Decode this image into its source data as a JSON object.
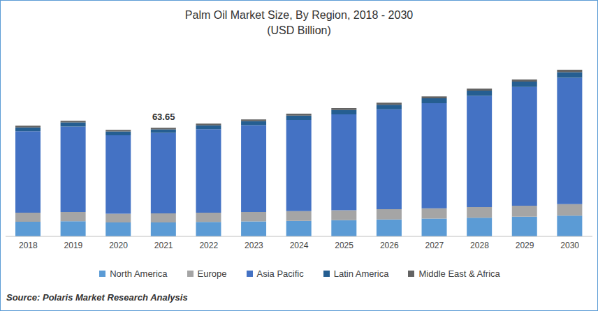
{
  "chart_data": {
    "type": "bar",
    "title": "Palm Oil Market Size, By Region, 2018 - 2030",
    "subtitle": "(USD Billion)",
    "source": "Source: Polaris Market Research Analysis",
    "categories": [
      "2018",
      "2019",
      "2020",
      "2021",
      "2022",
      "2023",
      "2024",
      "2025",
      "2026",
      "2027",
      "2028",
      "2029",
      "2030"
    ],
    "series": [
      {
        "name": "North America",
        "color": "#5b9bd5",
        "values": [
          8.6,
          8.9,
          8.2,
          8.2,
          8.5,
          8.8,
          9.1,
          9.5,
          9.9,
          10.4,
          10.9,
          11.5,
          12.2
        ]
      },
      {
        "name": "Europe",
        "color": "#a5a5a5",
        "values": [
          5.3,
          5.4,
          5.1,
          5.3,
          5.4,
          5.5,
          5.7,
          5.8,
          6.0,
          6.1,
          6.3,
          6.5,
          6.7
        ]
      },
      {
        "name": "Asia Pacific",
        "color": "#4472c4",
        "values": [
          47.7,
          50.1,
          46.0,
          47.2,
          48.9,
          50.9,
          53.5,
          56.2,
          58.6,
          61.6,
          65.2,
          69.6,
          74.1
        ]
      },
      {
        "name": "Latin America",
        "color": "#255e91",
        "values": [
          2.3,
          2.4,
          2.2,
          2.0,
          2.3,
          2.4,
          2.5,
          2.6,
          2.7,
          2.8,
          3.0,
          3.1,
          3.3
        ]
      },
      {
        "name": "Middle East & Africa",
        "color": "#636363",
        "values": [
          1.0,
          1.0,
          0.9,
          0.95,
          1.0,
          1.0,
          1.1,
          1.1,
          1.2,
          1.2,
          1.3,
          1.3,
          1.4
        ]
      }
    ],
    "annotations": [
      {
        "x": "2021",
        "value": 63.65,
        "label": "63.65"
      }
    ],
    "stacked": true,
    "grid": false,
    "legend": "bottom",
    "tick_labels": "x"
  }
}
